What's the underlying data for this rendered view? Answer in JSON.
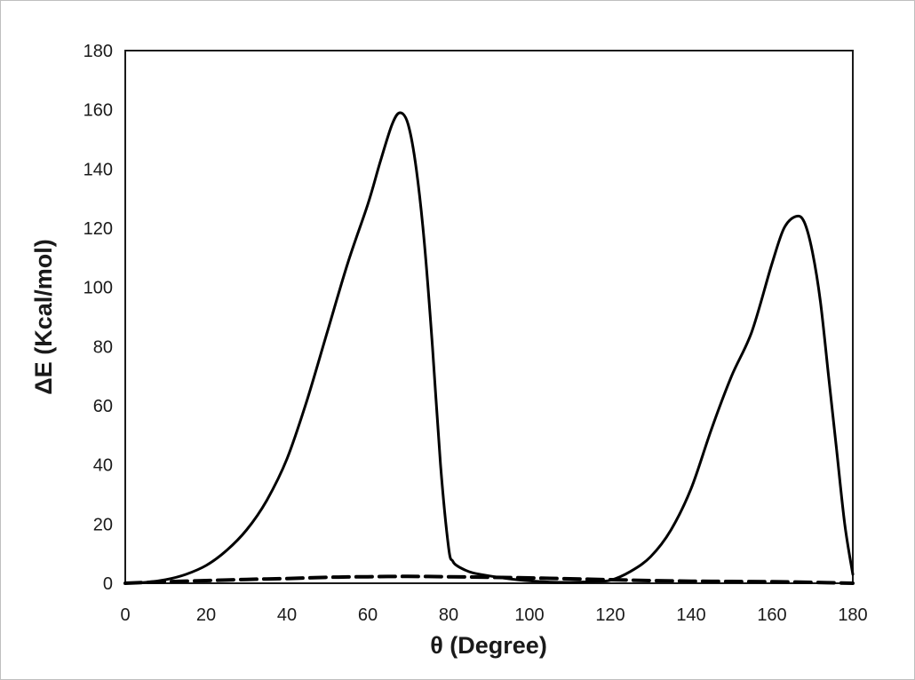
{
  "chart_data": {
    "type": "line",
    "title": "",
    "xlabel": "θ (Degree)",
    "ylabel": "ΔE (Kcal/mol)",
    "xlim": [
      0,
      180
    ],
    "ylim": [
      0,
      180
    ],
    "xticks": [
      0,
      20,
      40,
      60,
      80,
      100,
      120,
      140,
      160,
      180
    ],
    "yticks": [
      0,
      20,
      40,
      60,
      80,
      100,
      120,
      140,
      160,
      180
    ],
    "grid": false,
    "legend": "none",
    "series": [
      {
        "style": "solid",
        "color": "#000000",
        "x": [
          0,
          5,
          10,
          15,
          20,
          25,
          30,
          35,
          40,
          45,
          50,
          55,
          60,
          63,
          66,
          68,
          70,
          72,
          74,
          76,
          78,
          80,
          81,
          82,
          84,
          86,
          90,
          95,
          100,
          105,
          110,
          115,
          120,
          125,
          130,
          135,
          140,
          145,
          150,
          155,
          160,
          163,
          166,
          168,
          170,
          172,
          174,
          176,
          178,
          180
        ],
        "y": [
          0,
          0.3,
          1.2,
          3,
          6,
          11,
          18,
          28,
          42,
          62,
          85,
          108,
          128,
          142,
          155,
          159,
          155,
          140,
          115,
          80,
          40,
          12,
          7.5,
          6,
          4.5,
          3.5,
          2.5,
          1.5,
          0.8,
          0.4,
          0.3,
          0.5,
          1,
          4,
          9,
          18,
          32,
          52,
          70,
          85,
          108,
          120,
          124,
          122,
          112,
          95,
          70,
          45,
          20,
          3
        ]
      },
      {
        "style": "dashed",
        "color": "#000000",
        "x": [
          0,
          10,
          20,
          30,
          40,
          50,
          60,
          70,
          80,
          90,
          100,
          110,
          120,
          130,
          140,
          150,
          160,
          170,
          180
        ],
        "y": [
          0,
          0.5,
          0.9,
          1.3,
          1.6,
          2,
          2.2,
          2.3,
          2.2,
          2,
          1.8,
          1.5,
          1.2,
          0.9,
          0.7,
          0.6,
          0.5,
          0.3,
          0
        ]
      }
    ]
  }
}
